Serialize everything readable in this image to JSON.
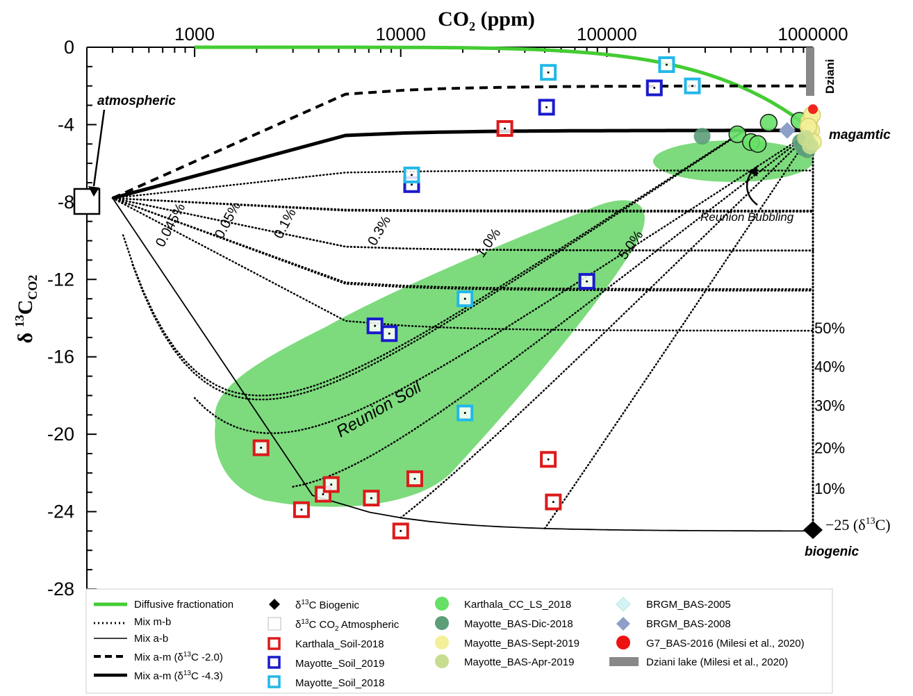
{
  "chart_data": {
    "type": "scatter",
    "top_axis": {
      "label_main": "CO",
      "label_sub": "2",
      "label_tail": " (ppm)",
      "scale": "log",
      "range": [
        300,
        1000000
      ],
      "ticks": [
        "1000",
        "10000",
        "100000",
        "1000000"
      ]
    },
    "y_axis": {
      "label_main": "δ ",
      "label_sup": "13",
      "label_mid": "C",
      "label_sub": "CO2",
      "range": [
        -28,
        0
      ],
      "ticks": [
        "0",
        "-4",
        "-8",
        "-12",
        "-16",
        "-20",
        "-24",
        "-28"
      ]
    },
    "annotations": {
      "atmospheric": "atmospheric",
      "magmatic": "magamtic",
      "biogenic": "biogenic",
      "biogenic_value": "−25 (δ",
      "biogenic_value_sup": "13",
      "biogenic_value_tail": "C)",
      "dziani": "Dziani",
      "reunion_bubbling": "Reunion Bubbling",
      "reunion_soil": "Reunion Soil",
      "mix_m_b_percent": [
        "50%",
        "40%",
        "30%",
        "20%",
        "10%"
      ],
      "mix_a_b_percent": [
        "0.045%",
        "0.05%",
        "0.1%",
        "0.3%",
        "1.0%",
        "5.0%"
      ]
    },
    "colors": {
      "karthala_soil": "#dd1a1a",
      "mayotte_soil_2019": "#1a1acc",
      "mayotte_soil_2018": "#22b8e8",
      "diffusive": "#44cc33",
      "reunion_area": "#7ddb7d",
      "karthala_cc": "#66e066",
      "mayotte_dic": "#5c9e78",
      "mayotte_sept": "#f4f09a",
      "mayotte_apr": "#c8dd90",
      "brgm_2005": "#d4f4f4",
      "brgm_2008": "#8ca0c8",
      "g7": "#ee1111",
      "dziani_lake": "#888888"
    },
    "series": [
      {
        "name": "Karthala_Soil-2018",
        "points": [
          [
            2100,
            -20.7
          ],
          [
            3300,
            -23.9
          ],
          [
            4200,
            -23.1
          ],
          [
            4600,
            -22.6
          ],
          [
            7200,
            -23.3
          ],
          [
            10000,
            -25.0
          ],
          [
            11700,
            -22.3
          ],
          [
            32000,
            -4.2
          ],
          [
            52000,
            -21.3
          ],
          [
            55000,
            -23.5
          ]
        ]
      },
      {
        "name": "Mayotte_Soil_2019",
        "points": [
          [
            7500,
            -14.4
          ],
          [
            8800,
            -14.8
          ],
          [
            11300,
            -7.1
          ],
          [
            80000,
            -12.1
          ],
          [
            170000,
            -2.1
          ],
          [
            51000,
            -3.1
          ]
        ]
      },
      {
        "name": "Mayotte_Soil_2018",
        "points": [
          [
            11300,
            -6.6
          ],
          [
            20500,
            -13.0
          ],
          [
            20500,
            -18.9
          ],
          [
            52000,
            -1.3
          ],
          [
            195000,
            -0.9
          ],
          [
            260000,
            -2.0
          ]
        ]
      },
      {
        "name": "Karthala_CC_LS_2018",
        "points": [
          [
            430000,
            -4.5
          ],
          [
            500000,
            -4.9
          ],
          [
            540000,
            -5.0
          ],
          [
            610000,
            -3.9
          ],
          [
            860000,
            -3.8
          ]
        ]
      },
      {
        "name": "Mayotte_BAS-Dic-2018",
        "points": [
          [
            290000,
            -4.6
          ],
          [
            870000,
            -4.9
          ],
          [
            900000,
            -5.2
          ],
          [
            960000,
            -4.5
          ],
          [
            940000,
            -5.3
          ]
        ]
      },
      {
        "name": "Mayotte_BAS-Sept-2019",
        "points": [
          [
            960000,
            -3.8
          ],
          [
            980000,
            -4.3
          ],
          [
            1000000,
            -4.9
          ],
          [
            990000,
            -3.5
          ],
          [
            950000,
            -4.1
          ]
        ]
      },
      {
        "name": "Mayotte_BAS-Apr-2019",
        "points": [
          [
            920000,
            -4.7
          ],
          [
            970000,
            -5.1
          ]
        ]
      },
      {
        "name": "BRGM_BAS-2005",
        "points": []
      },
      {
        "name": "BRGM_BAS-2008",
        "points": [
          [
            750000,
            -4.3
          ]
        ]
      },
      {
        "name": "G7_BAS-2016 (Milesi et al., 2020)",
        "points": [
          [
            1000000,
            -3.2
          ]
        ]
      }
    ]
  },
  "legend": {
    "col1": [
      "Diffusive fractionation",
      "Mix m-b",
      "Mix a-b",
      "Mix a-m (δ",
      "Mix a-m (δ"
    ],
    "col1_tail": [
      "",
      "",
      "",
      "C -2.0)",
      "C -4.3)"
    ],
    "col2": [
      "C Biogenic",
      "C CO",
      "Karthala_Soil-2018",
      "Mayotte_Soil_2019",
      "Mayotte_Soil_2018"
    ],
    "col2_pre": [
      "δ",
      "δ",
      "",
      "",
      ""
    ],
    "col2_tail": [
      "",
      " Atmospheric",
      "",
      "",
      ""
    ],
    "col3": [
      "Karthala_CC_LS_2018",
      "Mayotte_BAS-Dic-2018",
      "Mayotte_BAS-Sept-2019",
      "Mayotte_BAS-Apr-2019"
    ],
    "col4": [
      "BRGM_BAS-2005",
      "BRGM_BAS-2008",
      "G7_BAS-2016 (Milesi et al., 2020)",
      "Dziani lake (Milesi et al., 2020)"
    ]
  }
}
